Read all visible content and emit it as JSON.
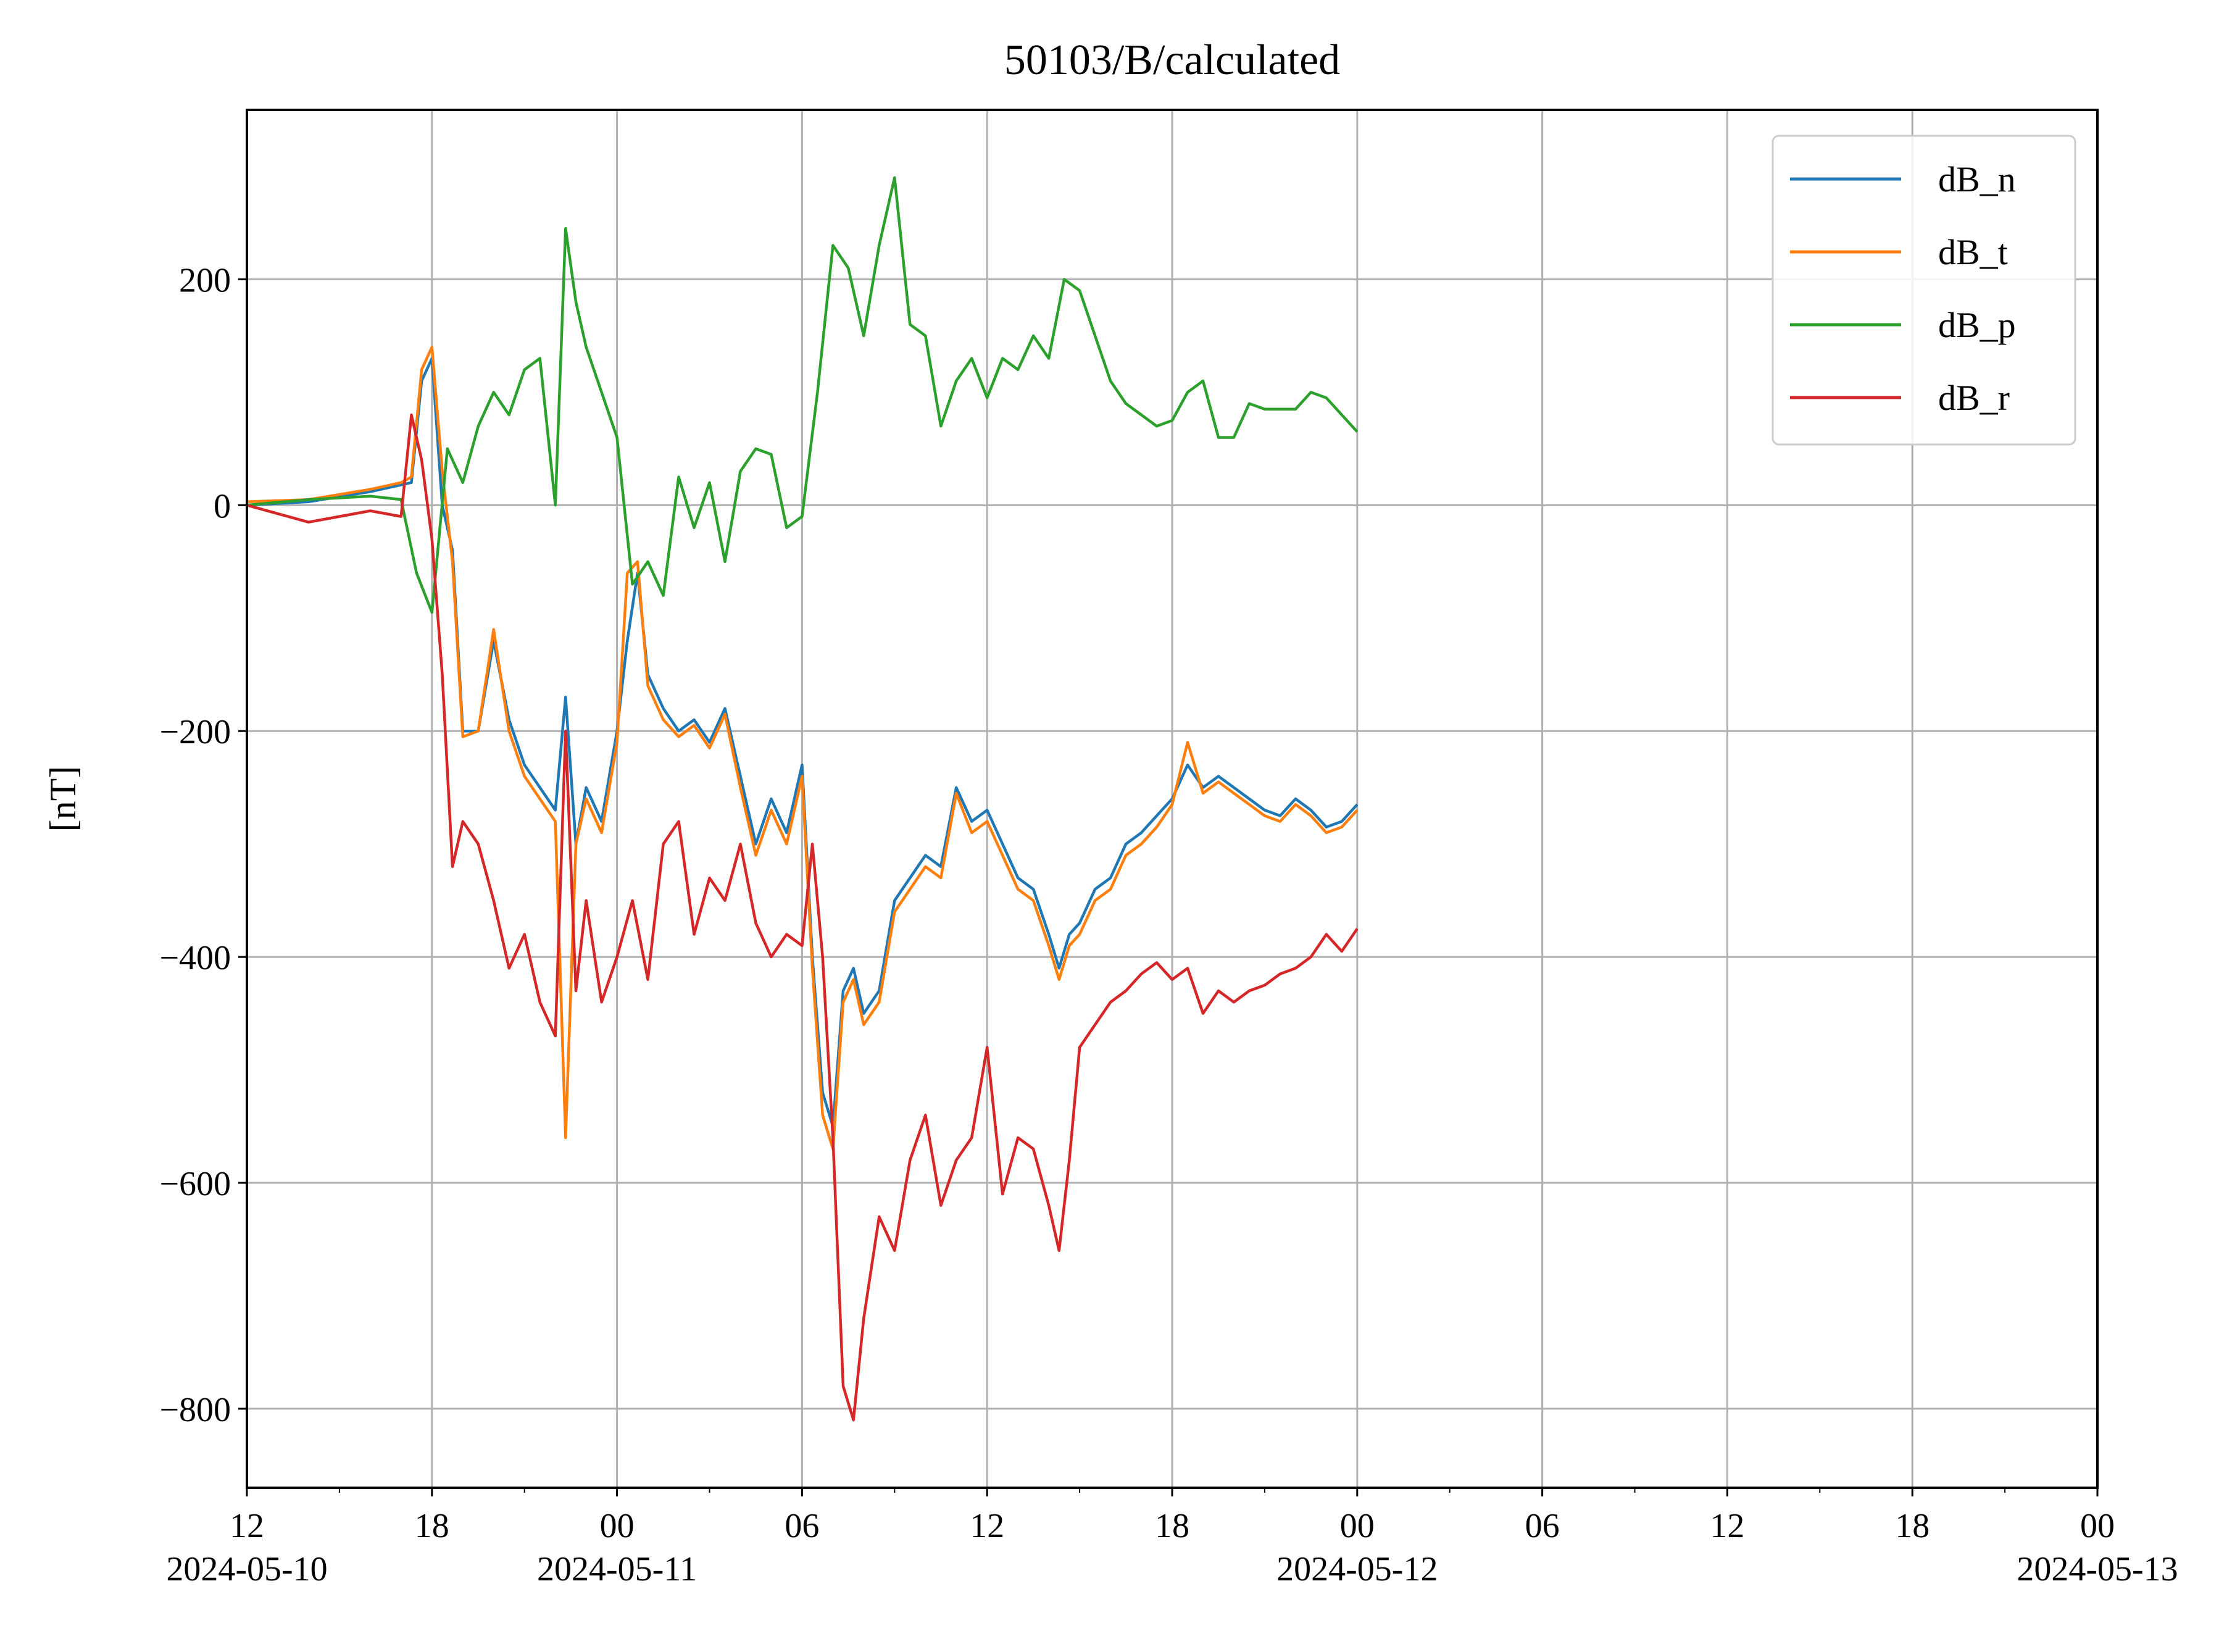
{
  "chart_data": {
    "type": "line",
    "title": "50103/B/calculated",
    "xlabel": "",
    "ylabel": "[nT]",
    "x_range": [
      "2024-05-10 12:00",
      "2024-05-13 00:00"
    ],
    "ylim": [
      -870,
      350
    ],
    "grid": true,
    "legend_position": "top-right",
    "y_ticks": [
      {
        "value": 200,
        "label": "200"
      },
      {
        "value": 0,
        "label": "0"
      },
      {
        "value": -200,
        "label": "−200"
      },
      {
        "value": -400,
        "label": "−400"
      },
      {
        "value": -600,
        "label": "−600"
      },
      {
        "value": -800,
        "label": "−800"
      }
    ],
    "x_ticks": [
      {
        "x": "2024-05-10 12:00",
        "label": "12",
        "date_label": "2024-05-10"
      },
      {
        "x": "2024-05-10 18:00",
        "label": "18",
        "date_label": ""
      },
      {
        "x": "2024-05-11 00:00",
        "label": "00",
        "date_label": "2024-05-11"
      },
      {
        "x": "2024-05-11 06:00",
        "label": "06",
        "date_label": ""
      },
      {
        "x": "2024-05-11 12:00",
        "label": "12",
        "date_label": ""
      },
      {
        "x": "2024-05-11 18:00",
        "label": "18",
        "date_label": ""
      },
      {
        "x": "2024-05-12 00:00",
        "label": "00",
        "date_label": "2024-05-12"
      },
      {
        "x": "2024-05-12 06:00",
        "label": "06",
        "date_label": ""
      },
      {
        "x": "2024-05-12 12:00",
        "label": "12",
        "date_label": ""
      },
      {
        "x": "2024-05-12 18:00",
        "label": "18",
        "date_label": ""
      },
      {
        "x": "2024-05-13 00:00",
        "label": "00",
        "date_label": "2024-05-13"
      }
    ],
    "series": [
      {
        "name": "dB_n",
        "color": "#1f77b4",
        "x": [
          "2024-05-10 12:00",
          "2024-05-10 14:00",
          "2024-05-10 16:00",
          "2024-05-10 17:00",
          "2024-05-10 17:20",
          "2024-05-10 17:40",
          "2024-05-10 18:00",
          "2024-05-10 18:20",
          "2024-05-10 18:40",
          "2024-05-10 19:00",
          "2024-05-10 19:30",
          "2024-05-10 20:00",
          "2024-05-10 20:30",
          "2024-05-10 21:00",
          "2024-05-10 21:30",
          "2024-05-10 22:00",
          "2024-05-10 22:20",
          "2024-05-10 22:40",
          "2024-05-10 23:00",
          "2024-05-10 23:30",
          "2024-05-11 00:00",
          "2024-05-11 00:20",
          "2024-05-11 00:40",
          "2024-05-11 01:00",
          "2024-05-11 01:30",
          "2024-05-11 02:00",
          "2024-05-11 02:30",
          "2024-05-11 03:00",
          "2024-05-11 03:30",
          "2024-05-11 04:00",
          "2024-05-11 04:30",
          "2024-05-11 05:00",
          "2024-05-11 05:30",
          "2024-05-11 06:00",
          "2024-05-11 06:20",
          "2024-05-11 06:40",
          "2024-05-11 07:00",
          "2024-05-11 07:20",
          "2024-05-11 07:40",
          "2024-05-11 08:00",
          "2024-05-11 08:30",
          "2024-05-11 09:00",
          "2024-05-11 09:30",
          "2024-05-11 10:00",
          "2024-05-11 10:30",
          "2024-05-11 11:00",
          "2024-05-11 11:30",
          "2024-05-11 12:00",
          "2024-05-11 12:30",
          "2024-05-11 13:00",
          "2024-05-11 13:30",
          "2024-05-11 14:00",
          "2024-05-11 14:20",
          "2024-05-11 14:40",
          "2024-05-11 15:00",
          "2024-05-11 15:30",
          "2024-05-11 16:00",
          "2024-05-11 16:30",
          "2024-05-11 17:00",
          "2024-05-11 17:30",
          "2024-05-11 18:00",
          "2024-05-11 18:30",
          "2024-05-11 19:00",
          "2024-05-11 19:30",
          "2024-05-11 20:00",
          "2024-05-11 20:30",
          "2024-05-11 21:00",
          "2024-05-11 21:30",
          "2024-05-11 22:00",
          "2024-05-11 22:30",
          "2024-05-11 23:00",
          "2024-05-11 23:30",
          "2024-05-12 00:00"
        ],
        "y": [
          0,
          3,
          12,
          18,
          20,
          110,
          130,
          0,
          -40,
          -200,
          -200,
          -120,
          -190,
          -230,
          -250,
          -270,
          -170,
          -300,
          -250,
          -280,
          -200,
          -120,
          -60,
          -150,
          -180,
          -200,
          -190,
          -210,
          -180,
          -240,
          -300,
          -260,
          -290,
          -230,
          -400,
          -520,
          -550,
          -430,
          -410,
          -450,
          -430,
          -350,
          -330,
          -310,
          -320,
          -250,
          -280,
          -270,
          -300,
          -330,
          -340,
          -380,
          -410,
          -380,
          -370,
          -340,
          -330,
          -300,
          -290,
          -275,
          -260,
          -230,
          -250,
          -240,
          -250,
          -260,
          -270,
          -275,
          -260,
          -270,
          -285,
          -280,
          -265
        ]
      },
      {
        "name": "dB_t",
        "color": "#ff7f0e",
        "x": [
          "2024-05-10 12:00",
          "2024-05-10 14:00",
          "2024-05-10 16:00",
          "2024-05-10 17:00",
          "2024-05-10 17:20",
          "2024-05-10 17:40",
          "2024-05-10 18:00",
          "2024-05-10 18:20",
          "2024-05-10 18:40",
          "2024-05-10 19:00",
          "2024-05-10 19:30",
          "2024-05-10 20:00",
          "2024-05-10 20:30",
          "2024-05-10 21:00",
          "2024-05-10 21:30",
          "2024-05-10 22:00",
          "2024-05-10 22:20",
          "2024-05-10 22:40",
          "2024-05-10 23:00",
          "2024-05-10 23:30",
          "2024-05-11 00:00",
          "2024-05-11 00:20",
          "2024-05-11 00:40",
          "2024-05-11 01:00",
          "2024-05-11 01:30",
          "2024-05-11 02:00",
          "2024-05-11 02:30",
          "2024-05-11 03:00",
          "2024-05-11 03:30",
          "2024-05-11 04:00",
          "2024-05-11 04:30",
          "2024-05-11 05:00",
          "2024-05-11 05:30",
          "2024-05-11 06:00",
          "2024-05-11 06:20",
          "2024-05-11 06:40",
          "2024-05-11 07:00",
          "2024-05-11 07:20",
          "2024-05-11 07:40",
          "2024-05-11 08:00",
          "2024-05-11 08:30",
          "2024-05-11 09:00",
          "2024-05-11 09:30",
          "2024-05-11 10:00",
          "2024-05-11 10:30",
          "2024-05-11 11:00",
          "2024-05-11 11:30",
          "2024-05-11 12:00",
          "2024-05-11 12:30",
          "2024-05-11 13:00",
          "2024-05-11 13:30",
          "2024-05-11 14:00",
          "2024-05-11 14:20",
          "2024-05-11 14:40",
          "2024-05-11 15:00",
          "2024-05-11 15:30",
          "2024-05-11 16:00",
          "2024-05-11 16:30",
          "2024-05-11 17:00",
          "2024-05-11 17:30",
          "2024-05-11 18:00",
          "2024-05-11 18:30",
          "2024-05-11 19:00",
          "2024-05-11 19:30",
          "2024-05-11 20:00",
          "2024-05-11 20:30",
          "2024-05-11 21:00",
          "2024-05-11 21:30",
          "2024-05-11 22:00",
          "2024-05-11 22:30",
          "2024-05-11 23:00",
          "2024-05-11 23:30",
          "2024-05-12 00:00"
        ],
        "y": [
          3,
          5,
          14,
          20,
          25,
          120,
          140,
          30,
          -50,
          -205,
          -200,
          -110,
          -200,
          -240,
          -260,
          -280,
          -560,
          -300,
          -260,
          -290,
          -210,
          -60,
          -50,
          -160,
          -190,
          -205,
          -195,
          -215,
          -185,
          -250,
          -310,
          -270,
          -300,
          -240,
          -410,
          -540,
          -570,
          -440,
          -420,
          -460,
          -440,
          -360,
          -340,
          -320,
          -330,
          -255,
          -290,
          -280,
          -310,
          -340,
          -350,
          -390,
          -420,
          -390,
          -380,
          -350,
          -340,
          -310,
          -300,
          -285,
          -265,
          -210,
          -255,
          -245,
          -255,
          -265,
          -275,
          -280,
          -265,
          -275,
          -290,
          -285,
          -270
        ]
      },
      {
        "name": "dB_p",
        "color": "#2ca02c",
        "x": [
          "2024-05-10 12:00",
          "2024-05-10 14:00",
          "2024-05-10 16:00",
          "2024-05-10 17:00",
          "2024-05-10 17:30",
          "2024-05-10 18:00",
          "2024-05-10 18:30",
          "2024-05-10 19:00",
          "2024-05-10 19:30",
          "2024-05-10 20:00",
          "2024-05-10 20:30",
          "2024-05-10 21:00",
          "2024-05-10 21:30",
          "2024-05-10 22:00",
          "2024-05-10 22:20",
          "2024-05-10 22:40",
          "2024-05-10 23:00",
          "2024-05-10 23:30",
          "2024-05-11 00:00",
          "2024-05-11 00:30",
          "2024-05-11 01:00",
          "2024-05-11 01:30",
          "2024-05-11 02:00",
          "2024-05-11 02:30",
          "2024-05-11 03:00",
          "2024-05-11 03:30",
          "2024-05-11 04:00",
          "2024-05-11 04:30",
          "2024-05-11 05:00",
          "2024-05-11 05:30",
          "2024-05-11 06:00",
          "2024-05-11 06:30",
          "2024-05-11 07:00",
          "2024-05-11 07:30",
          "2024-05-11 08:00",
          "2024-05-11 08:30",
          "2024-05-11 09:00",
          "2024-05-11 09:30",
          "2024-05-11 10:00",
          "2024-05-11 10:30",
          "2024-05-11 11:00",
          "2024-05-11 11:30",
          "2024-05-11 12:00",
          "2024-05-11 12:30",
          "2024-05-11 13:00",
          "2024-05-11 13:30",
          "2024-05-11 14:00",
          "2024-05-11 14:30",
          "2024-05-11 15:00",
          "2024-05-11 15:30",
          "2024-05-11 16:00",
          "2024-05-11 16:30",
          "2024-05-11 17:00",
          "2024-05-11 17:30",
          "2024-05-11 18:00",
          "2024-05-11 18:30",
          "2024-05-11 19:00",
          "2024-05-11 19:30",
          "2024-05-11 20:00",
          "2024-05-11 20:30",
          "2024-05-11 21:00",
          "2024-05-11 21:30",
          "2024-05-11 22:00",
          "2024-05-11 22:30",
          "2024-05-11 23:00",
          "2024-05-11 23:30",
          "2024-05-12 00:00"
        ],
        "y": [
          0,
          5,
          8,
          5,
          -60,
          -95,
          50,
          20,
          70,
          100,
          80,
          120,
          130,
          0,
          245,
          180,
          140,
          100,
          60,
          -70,
          -50,
          -80,
          25,
          -20,
          20,
          -50,
          30,
          50,
          45,
          -20,
          -10,
          100,
          230,
          210,
          150,
          230,
          290,
          160,
          150,
          70,
          110,
          130,
          95,
          130,
          120,
          150,
          130,
          200,
          190,
          150,
          110,
          90,
          80,
          70,
          75,
          100,
          110,
          60,
          60,
          90,
          85,
          85,
          85,
          100,
          95,
          80,
          65
        ]
      },
      {
        "name": "dB_r",
        "color": "#d62728",
        "x": [
          "2024-05-10 12:00",
          "2024-05-10 14:00",
          "2024-05-10 16:00",
          "2024-05-10 17:00",
          "2024-05-10 17:20",
          "2024-05-10 17:40",
          "2024-05-10 18:00",
          "2024-05-10 18:20",
          "2024-05-10 18:40",
          "2024-05-10 19:00",
          "2024-05-10 19:30",
          "2024-05-10 20:00",
          "2024-05-10 20:30",
          "2024-05-10 21:00",
          "2024-05-10 21:30",
          "2024-05-10 22:00",
          "2024-05-10 22:20",
          "2024-05-10 22:40",
          "2024-05-10 23:00",
          "2024-05-10 23:30",
          "2024-05-11 00:00",
          "2024-05-11 00:30",
          "2024-05-11 01:00",
          "2024-05-11 01:30",
          "2024-05-11 02:00",
          "2024-05-11 02:30",
          "2024-05-11 03:00",
          "2024-05-11 03:30",
          "2024-05-11 04:00",
          "2024-05-11 04:30",
          "2024-05-11 05:00",
          "2024-05-11 05:30",
          "2024-05-11 06:00",
          "2024-05-11 06:20",
          "2024-05-11 06:40",
          "2024-05-11 07:00",
          "2024-05-11 07:20",
          "2024-05-11 07:40",
          "2024-05-11 08:00",
          "2024-05-11 08:30",
          "2024-05-11 09:00",
          "2024-05-11 09:30",
          "2024-05-11 10:00",
          "2024-05-11 10:30",
          "2024-05-11 11:00",
          "2024-05-11 11:30",
          "2024-05-11 12:00",
          "2024-05-11 12:30",
          "2024-05-11 13:00",
          "2024-05-11 13:30",
          "2024-05-11 14:00",
          "2024-05-11 14:20",
          "2024-05-11 14:40",
          "2024-05-11 15:00",
          "2024-05-11 15:30",
          "2024-05-11 16:00",
          "2024-05-11 16:30",
          "2024-05-11 17:00",
          "2024-05-11 17:30",
          "2024-05-11 18:00",
          "2024-05-11 18:30",
          "2024-05-11 19:00",
          "2024-05-11 19:30",
          "2024-05-11 20:00",
          "2024-05-11 20:30",
          "2024-05-11 21:00",
          "2024-05-11 21:30",
          "2024-05-11 22:00",
          "2024-05-11 22:30",
          "2024-05-11 23:00",
          "2024-05-11 23:30",
          "2024-05-12 00:00"
        ],
        "y": [
          0,
          -15,
          -5,
          -10,
          80,
          40,
          -30,
          -150,
          -320,
          -280,
          -300,
          -350,
          -410,
          -380,
          -440,
          -470,
          -200,
          -430,
          -350,
          -440,
          -400,
          -350,
          -420,
          -300,
          -280,
          -380,
          -330,
          -350,
          -300,
          -370,
          -400,
          -380,
          -390,
          -300,
          -400,
          -560,
          -780,
          -810,
          -720,
          -630,
          -660,
          -580,
          -540,
          -620,
          -580,
          -560,
          -480,
          -610,
          -560,
          -570,
          -620,
          -660,
          -580,
          -480,
          -460,
          -440,
          -430,
          -415,
          -405,
          -420,
          -410,
          -450,
          -430,
          -440,
          -430,
          -425,
          -415,
          -410,
          -400,
          -380,
          -395,
          -375
        ]
      }
    ]
  }
}
